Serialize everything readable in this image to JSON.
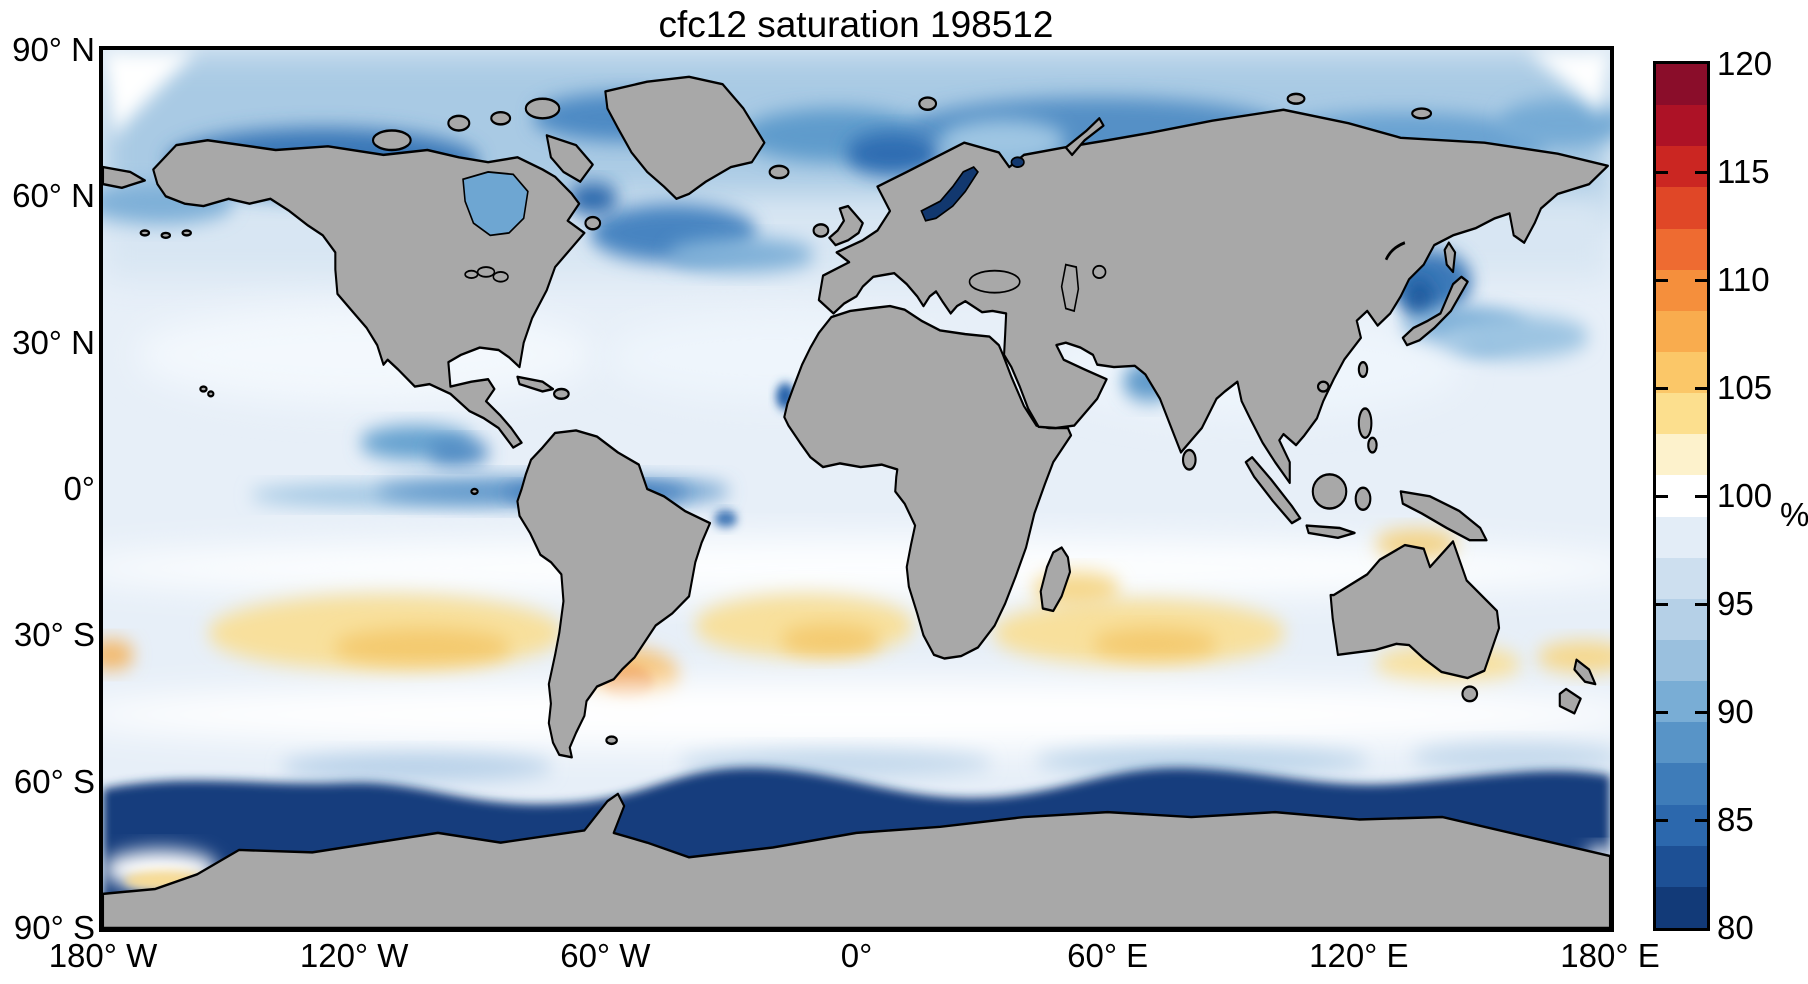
{
  "title": "cfc12 saturation 198512",
  "axes": {
    "longitude_ticks": [
      "180° W",
      "120° W",
      "60° W",
      "0°",
      "60° E",
      "120° E",
      "180° E"
    ],
    "latitude_ticks": [
      "90° N",
      "60° N",
      "30° N",
      "0°",
      "30° S",
      "60° S",
      "90° S"
    ]
  },
  "colorbar": {
    "units": "%",
    "min": 80,
    "max": 120,
    "tick_labels": [
      "120",
      "115",
      "110",
      "105",
      "100",
      "95",
      "90",
      "85",
      "80"
    ],
    "band_colors_top_to_bottom": [
      "#8a0d2a",
      "#ad1226",
      "#cb2622",
      "#e04727",
      "#ee6b31",
      "#f58f3c",
      "#f9ac4e",
      "#fbc768",
      "#fcdf8e",
      "#fdf2cc",
      "#ffffff",
      "#e3edf7",
      "#cddfef",
      "#b5d0e7",
      "#9ac0de",
      "#79add5",
      "#5894c7",
      "#3e7cb9",
      "#2c68ad",
      "#1d5095",
      "#123a78"
    ]
  },
  "colors": {
    "land": "#a8a8a8",
    "coastline": "#000000",
    "ocean_base": "#e7eff8",
    "supersaturation_yellow": "#f6dd96",
    "undersaturation_navy": "#123e7d",
    "frame": "#000000",
    "background": "#ffffff"
  },
  "chart_data": {
    "type": "heatmap",
    "title": "cfc12 saturation 198512",
    "variable": "CFC-12 saturation",
    "time": "198512",
    "units": "%",
    "projection": "equirectangular world map",
    "lon_range": [
      -180,
      180
    ],
    "lat_range": [
      -90,
      90
    ],
    "value_range": [
      80,
      120
    ],
    "colorbar_ticks": [
      80,
      85,
      90,
      95,
      100,
      105,
      110,
      115,
      120
    ],
    "x_ticks_deg": [
      -180,
      -120,
      -60,
      0,
      60,
      120,
      180
    ],
    "y_ticks_deg": [
      90,
      60,
      30,
      0,
      -30,
      -60,
      -90
    ],
    "field_summary": [
      {
        "region": "Arctic Ocean (75-90N)",
        "approx_pct": [
          88,
          96
        ]
      },
      {
        "region": "Norwegian and Greenland Seas",
        "approx_pct": [
          84,
          92
        ]
      },
      {
        "region": "Baltic Sea",
        "approx_pct": [
          80,
          82
        ]
      },
      {
        "region": "Hudson Bay",
        "approx_pct": [
          86,
          92
        ]
      },
      {
        "region": "North Atlantic subpolar gyre (45-60N)",
        "approx_pct": [
          86,
          94
        ]
      },
      {
        "region": "Sea of Japan and NW Pacific off Japan",
        "approx_pct": [
          86,
          94
        ]
      },
      {
        "region": "Northern subtropical oceans (10-35N)",
        "approx_pct": [
          96,
          99
        ]
      },
      {
        "region": "Equatorial eastern Pacific upwelling streak",
        "approx_pct": [
          90,
          95
        ]
      },
      {
        "region": "Arabian Sea coastal patch",
        "approx_pct": [
          90,
          95
        ]
      },
      {
        "region": "Southern subtropics 20-40S (S Pacific, S Atlantic, S Indian)",
        "approx_pct": [
          101,
          106
        ]
      },
      {
        "region": "Patagonian shelf spot near 45S 60W",
        "approx_pct": [
          106,
          110
        ]
      },
      {
        "region": "Southern Ocean 55-70S",
        "approx_pct": [
          80,
          86
        ]
      },
      {
        "region": "Ross Sea coastal strip near 78S",
        "approx_pct": [
          100,
          104
        ]
      }
    ]
  }
}
